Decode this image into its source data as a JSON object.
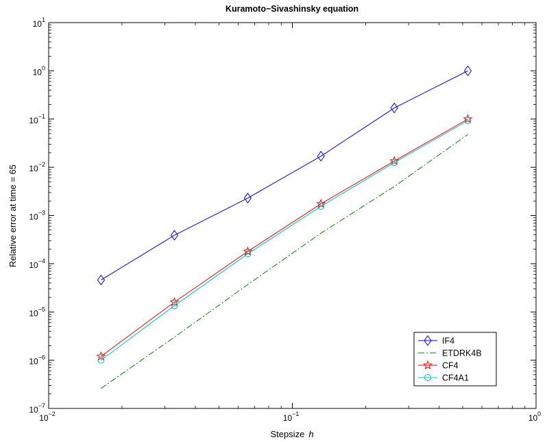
{
  "chart_data": {
    "type": "line",
    "title": "Kuramoto−Sivashinsky equation",
    "xlabel": "Stepsize",
    "xlabel_var": "h",
    "ylabel": "Relative error at time = 65",
    "xscale": "log",
    "yscale": "log",
    "xlim": [
      0.01,
      1
    ],
    "ylim": [
      1e-07,
      10
    ],
    "grid": false,
    "legend_position": "bottom-right",
    "x_ticks": [
      {
        "base": "10",
        "exp": "−2",
        "value": 0.01
      },
      {
        "base": "10",
        "exp": "−1",
        "value": 0.1
      },
      {
        "base": "10",
        "exp": "0",
        "value": 1
      }
    ],
    "y_ticks": [
      {
        "base": "10",
        "exp": "1",
        "value": 10
      },
      {
        "base": "10",
        "exp": "0",
        "value": 1
      },
      {
        "base": "10",
        "exp": "−1",
        "value": 0.1
      },
      {
        "base": "10",
        "exp": "−2",
        "value": 0.01
      },
      {
        "base": "10",
        "exp": "−3",
        "value": 0.001
      },
      {
        "base": "10",
        "exp": "−4",
        "value": 0.0001
      },
      {
        "base": "10",
        "exp": "−5",
        "value": 1e-05
      },
      {
        "base": "10",
        "exp": "−6",
        "value": 1e-06
      },
      {
        "base": "10",
        "exp": "−7",
        "value": 1e-07
      }
    ],
    "x": [
      0.0164,
      0.0328,
      0.0656,
      0.131,
      0.262,
      0.525
    ],
    "series": [
      {
        "name": "IF4",
        "color": "#0000ff",
        "marker": "diamond",
        "line": "solid",
        "values": [
          4.6e-05,
          0.00039,
          0.0023,
          0.017,
          0.17,
          1.0
        ]
      },
      {
        "name": "ETDRK4B",
        "color": "#008000",
        "marker": "none",
        "line": "dashdot",
        "values": [
          2.6e-07,
          3e-06,
          3.7e-05,
          0.00043,
          0.004,
          0.048
        ]
      },
      {
        "name": "CF4",
        "color": "#ff0000",
        "marker": "star",
        "line": "solid",
        "values": [
          1.2e-06,
          1.6e-05,
          0.00018,
          0.00175,
          0.0135,
          0.1
        ]
      },
      {
        "name": "CF4A1",
        "color": "#00bfbf",
        "marker": "circle",
        "line": "solid",
        "values": [
          1e-06,
          1.35e-05,
          0.00016,
          0.00155,
          0.0125,
          0.093
        ]
      }
    ]
  }
}
